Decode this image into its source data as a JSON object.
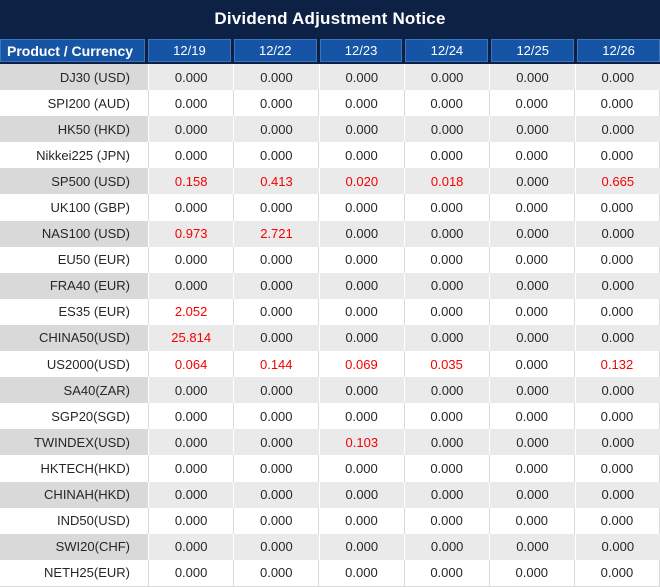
{
  "title": "Dividend Adjustment Notice",
  "colors": {
    "navy": "#0d2145",
    "header_blue": "#1654a6",
    "header_blue_border": "#3f74bd",
    "stripe_product_gray": "#d9d9d9",
    "stripe_value_gray": "#eaeaea",
    "value_red": "#f60000",
    "text_dark": "#262626"
  },
  "table": {
    "product_header": "Product / Currency",
    "date_headers": [
      "12/19",
      "12/22",
      "12/23",
      "12/24",
      "12/25",
      "12/26"
    ],
    "rows": [
      {
        "product": "DJ30 (USD)",
        "values": [
          "0.000",
          "0.000",
          "0.000",
          "0.000",
          "0.000",
          "0.000"
        ],
        "red": [
          false,
          false,
          false,
          false,
          false,
          false
        ]
      },
      {
        "product": "SPI200 (AUD)",
        "values": [
          "0.000",
          "0.000",
          "0.000",
          "0.000",
          "0.000",
          "0.000"
        ],
        "red": [
          false,
          false,
          false,
          false,
          false,
          false
        ]
      },
      {
        "product": "HK50 (HKD)",
        "values": [
          "0.000",
          "0.000",
          "0.000",
          "0.000",
          "0.000",
          "0.000"
        ],
        "red": [
          false,
          false,
          false,
          false,
          false,
          false
        ]
      },
      {
        "product": "Nikkei225 (JPN)",
        "values": [
          "0.000",
          "0.000",
          "0.000",
          "0.000",
          "0.000",
          "0.000"
        ],
        "red": [
          false,
          false,
          false,
          false,
          false,
          false
        ]
      },
      {
        "product": "SP500 (USD)",
        "values": [
          "0.158",
          "0.413",
          "0.020",
          "0.018",
          "0.000",
          "0.665"
        ],
        "red": [
          true,
          true,
          true,
          true,
          false,
          true
        ]
      },
      {
        "product": "UK100 (GBP)",
        "values": [
          "0.000",
          "0.000",
          "0.000",
          "0.000",
          "0.000",
          "0.000"
        ],
        "red": [
          false,
          false,
          false,
          false,
          false,
          false
        ]
      },
      {
        "product": "NAS100 (USD)",
        "values": [
          "0.973",
          "2.721",
          "0.000",
          "0.000",
          "0.000",
          "0.000"
        ],
        "red": [
          true,
          true,
          false,
          false,
          false,
          false
        ]
      },
      {
        "product": "EU50 (EUR)",
        "values": [
          "0.000",
          "0.000",
          "0.000",
          "0.000",
          "0.000",
          "0.000"
        ],
        "red": [
          false,
          false,
          false,
          false,
          false,
          false
        ]
      },
      {
        "product": "FRA40 (EUR)",
        "values": [
          "0.000",
          "0.000",
          "0.000",
          "0.000",
          "0.000",
          "0.000"
        ],
        "red": [
          false,
          false,
          false,
          false,
          false,
          false
        ]
      },
      {
        "product": "ES35 (EUR)",
        "values": [
          "2.052",
          "0.000",
          "0.000",
          "0.000",
          "0.000",
          "0.000"
        ],
        "red": [
          true,
          false,
          false,
          false,
          false,
          false
        ]
      },
      {
        "product": "CHINA50(USD)",
        "values": [
          "25.814",
          "0.000",
          "0.000",
          "0.000",
          "0.000",
          "0.000"
        ],
        "red": [
          true,
          false,
          false,
          false,
          false,
          false
        ]
      },
      {
        "product": "US2000(USD)",
        "values": [
          "0.064",
          "0.144",
          "0.069",
          "0.035",
          "0.000",
          "0.132"
        ],
        "red": [
          true,
          true,
          true,
          true,
          false,
          true
        ]
      },
      {
        "product": "SA40(ZAR)",
        "values": [
          "0.000",
          "0.000",
          "0.000",
          "0.000",
          "0.000",
          "0.000"
        ],
        "red": [
          false,
          false,
          false,
          false,
          false,
          false
        ]
      },
      {
        "product": "SGP20(SGD)",
        "values": [
          "0.000",
          "0.000",
          "0.000",
          "0.000",
          "0.000",
          "0.000"
        ],
        "red": [
          false,
          false,
          false,
          false,
          false,
          false
        ]
      },
      {
        "product": "TWINDEX(USD)",
        "values": [
          "0.000",
          "0.000",
          "0.103",
          "0.000",
          "0.000",
          "0.000"
        ],
        "red": [
          false,
          false,
          true,
          false,
          false,
          false
        ]
      },
      {
        "product": "HKTECH(HKD)",
        "values": [
          "0.000",
          "0.000",
          "0.000",
          "0.000",
          "0.000",
          "0.000"
        ],
        "red": [
          false,
          false,
          false,
          false,
          false,
          false
        ]
      },
      {
        "product": "CHINAH(HKD)",
        "values": [
          "0.000",
          "0.000",
          "0.000",
          "0.000",
          "0.000",
          "0.000"
        ],
        "red": [
          false,
          false,
          false,
          false,
          false,
          false
        ]
      },
      {
        "product": "IND50(USD)",
        "values": [
          "0.000",
          "0.000",
          "0.000",
          "0.000",
          "0.000",
          "0.000"
        ],
        "red": [
          false,
          false,
          false,
          false,
          false,
          false
        ]
      },
      {
        "product": "SWI20(CHF)",
        "values": [
          "0.000",
          "0.000",
          "0.000",
          "0.000",
          "0.000",
          "0.000"
        ],
        "red": [
          false,
          false,
          false,
          false,
          false,
          false
        ]
      },
      {
        "product": "NETH25(EUR)",
        "values": [
          "0.000",
          "0.000",
          "0.000",
          "0.000",
          "0.000",
          "0.000"
        ],
        "red": [
          false,
          false,
          false,
          false,
          false,
          false
        ]
      }
    ]
  }
}
